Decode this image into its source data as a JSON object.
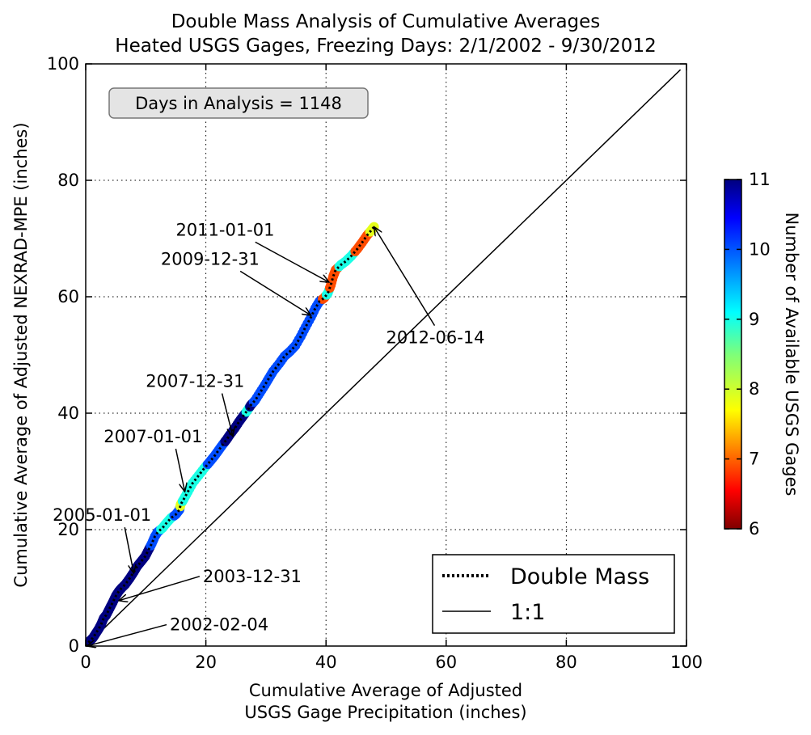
{
  "chart_data": {
    "type": "scatter",
    "title_line1": "Double Mass Analysis of Cumulative Averages",
    "title_line2": "Heated USGS Gages, Freezing Days: 2/1/2002 - 9/30/2012",
    "xlabel_line1": "Cumulative Average of Adjusted",
    "xlabel_line2": "USGS Gage Precipitation (inches)",
    "ylabel": "Cumulative Average of Adjusted NEXRAD-MPE (inches)",
    "xlim": [
      0,
      100
    ],
    "ylim": [
      0,
      100
    ],
    "x_ticks": [
      0,
      20,
      40,
      60,
      80,
      100
    ],
    "y_ticks": [
      0,
      20,
      40,
      60,
      80,
      100
    ],
    "grid": true,
    "info_box": "Days in Analysis = 1148",
    "legend": {
      "position": "lower-right",
      "entries": [
        {
          "label": "Double Mass",
          "style": "dotted"
        },
        {
          "label": "1:1",
          "style": "solid"
        }
      ]
    },
    "colorbar": {
      "label": "Number of Available USGS Gages",
      "min": 6,
      "max": 11,
      "ticks": [
        6,
        7,
        8,
        9,
        10,
        11
      ],
      "colormap": "jet-reversed"
    },
    "series": [
      {
        "name": "Double Mass",
        "points": [
          [
            0,
            0,
            11
          ],
          [
            0.3,
            0.4,
            11
          ],
          [
            0.7,
            0.9,
            11
          ],
          [
            1.2,
            1.4,
            11
          ],
          [
            1.7,
            2.2,
            11
          ],
          [
            2.2,
            3.0,
            11
          ],
          [
            2.6,
            3.8,
            11
          ],
          [
            3.0,
            4.8,
            11
          ],
          [
            3.4,
            5.3,
            11
          ],
          [
            4.0,
            6.5,
            11
          ],
          [
            4.5,
            7.5,
            11
          ],
          [
            5.0,
            8.6,
            11
          ],
          [
            5.5,
            9.4,
            11
          ],
          [
            6.0,
            10.0,
            11
          ],
          [
            6.6,
            10.6,
            11
          ],
          [
            7.3,
            11.6,
            11
          ],
          [
            8.0,
            12.7,
            11
          ],
          [
            8.5,
            13.6,
            11
          ],
          [
            9.2,
            14.5,
            11
          ],
          [
            9.9,
            15.4,
            11
          ],
          [
            10.5,
            16.6,
            11
          ],
          [
            11.0,
            17.6,
            10
          ],
          [
            11.5,
            18.8,
            10
          ],
          [
            12.0,
            19.6,
            10
          ],
          [
            12.8,
            20.3,
            9
          ],
          [
            13.5,
            21.2,
            9
          ],
          [
            14.2,
            22.0,
            9
          ],
          [
            15.0,
            22.6,
            10
          ],
          [
            15.6,
            23.4,
            10
          ],
          [
            15.8,
            24.3,
            8
          ],
          [
            16.3,
            25.2,
            9
          ],
          [
            17.0,
            26.5,
            9
          ],
          [
            17.8,
            28.0,
            9
          ],
          [
            18.8,
            29.3,
            9
          ],
          [
            19.7,
            30.5,
            9
          ],
          [
            20.6,
            31.6,
            10
          ],
          [
            21.4,
            32.6,
            10
          ],
          [
            22.1,
            33.6,
            10
          ],
          [
            22.8,
            34.6,
            10
          ],
          [
            23.4,
            35.4,
            11
          ],
          [
            24.0,
            36.3,
            11
          ],
          [
            24.8,
            37.4,
            11
          ],
          [
            25.5,
            38.5,
            11
          ],
          [
            26.2,
            39.5,
            11
          ],
          [
            27.0,
            40.6,
            9
          ],
          [
            27.5,
            41.4,
            11
          ],
          [
            28.2,
            42.2,
            10
          ],
          [
            29.0,
            43.5,
            10
          ],
          [
            29.8,
            44.8,
            10
          ],
          [
            30.5,
            46.0,
            10
          ],
          [
            31.2,
            47.2,
            10
          ],
          [
            32.2,
            48.5,
            10
          ],
          [
            33.1,
            49.8,
            10
          ],
          [
            34.0,
            50.6,
            10
          ],
          [
            34.9,
            51.6,
            10
          ],
          [
            35.8,
            53.2,
            10
          ],
          [
            36.6,
            54.8,
            10
          ],
          [
            37.5,
            56.5,
            10
          ],
          [
            38.2,
            58.0,
            10
          ],
          [
            38.9,
            59.2,
            10
          ],
          [
            39.7,
            59.8,
            7
          ],
          [
            40.3,
            60.6,
            9
          ],
          [
            40.8,
            62.0,
            7
          ],
          [
            41.2,
            63.5,
            7
          ],
          [
            41.6,
            64.6,
            7
          ],
          [
            42.5,
            65.5,
            9
          ],
          [
            43.3,
            66.1,
            9
          ],
          [
            44.2,
            67.0,
            9
          ],
          [
            45.2,
            68.2,
            7
          ],
          [
            46.0,
            69.3,
            7
          ],
          [
            46.8,
            70.5,
            7
          ],
          [
            47.6,
            71.5,
            8
          ],
          [
            48.0,
            72.0,
            8
          ]
        ]
      },
      {
        "name": "1:1",
        "points": [
          [
            0,
            0,
            0
          ],
          [
            99,
            99,
            0
          ]
        ]
      }
    ],
    "annotations": [
      {
        "text": "2011-01-01",
        "text_x": 15.0,
        "text_y": 70.5,
        "point_x": 40.5,
        "point_y": 62.5
      },
      {
        "text": "2009-12-31",
        "text_x": 12.5,
        "text_y": 65.5,
        "point_x": 37.5,
        "point_y": 56.8
      },
      {
        "text": "2012-06-14",
        "text_x": 50.0,
        "text_y": 52.0,
        "point_x": 48.0,
        "point_y": 72.0
      },
      {
        "text": "2007-12-31",
        "text_x": 10.0,
        "text_y": 44.5,
        "point_x": 24.5,
        "point_y": 36.0
      },
      {
        "text": "2007-01-01",
        "text_x": 3.0,
        "text_y": 35.0,
        "point_x": 16.5,
        "point_y": 26.5
      },
      {
        "text": "2005-01-01",
        "text_x": -5.5,
        "text_y": 21.5,
        "point_x": 8.0,
        "point_y": 12.5
      },
      {
        "text": "2003-12-31",
        "text_x": 19.5,
        "text_y": 11.0,
        "point_x": 5.5,
        "point_y": 7.8
      },
      {
        "text": "2002-02-04",
        "text_x": 14.0,
        "text_y": 2.7,
        "point_x": 0.2,
        "point_y": 0.0
      }
    ]
  }
}
